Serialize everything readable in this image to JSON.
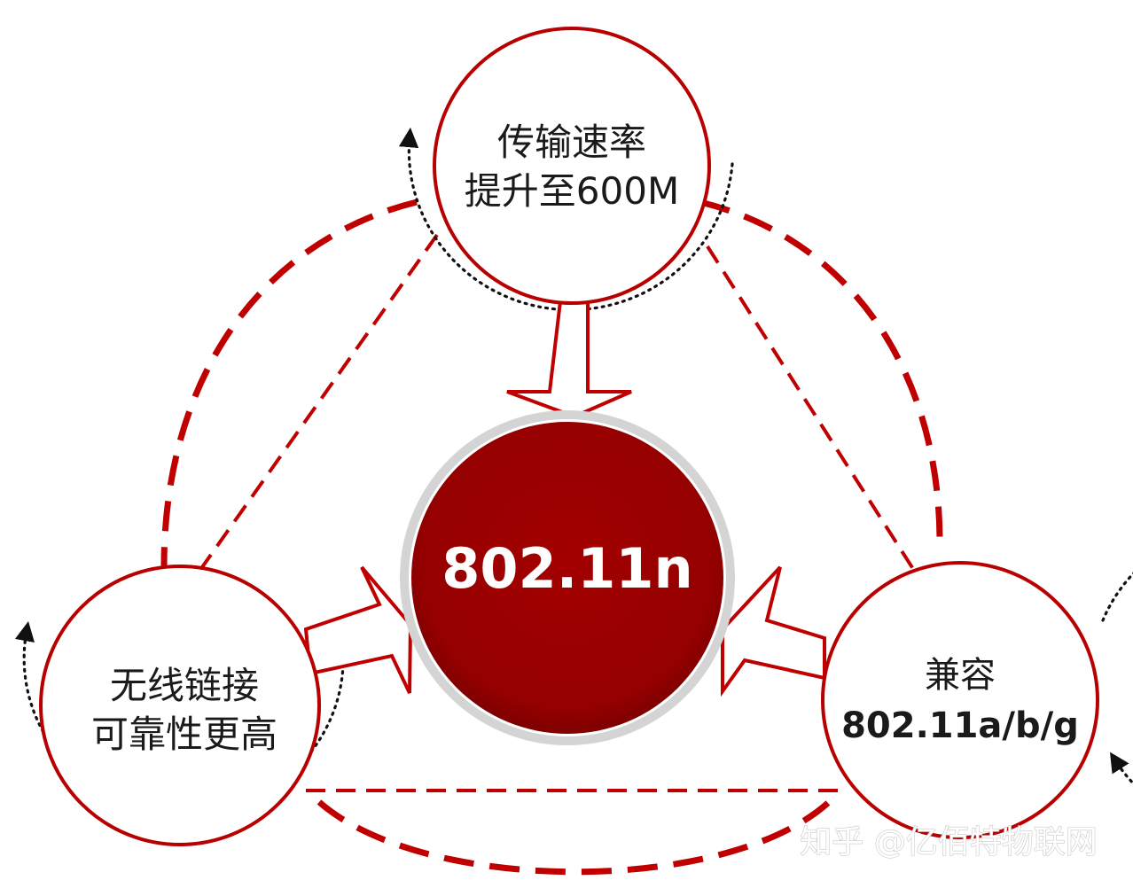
{
  "center": {
    "label": "802.11n"
  },
  "nodes": {
    "top": {
      "line1": "传输速率",
      "line2": "提升至600M"
    },
    "left": {
      "line1": "无线链接",
      "line2": "可靠性更高"
    },
    "right": {
      "line1": "兼容",
      "line2": "802.11a/b/g"
    }
  },
  "watermark": "知乎 @亿佰特物联网",
  "colors": {
    "accent": "#c00000",
    "center_fill": "#9b0000",
    "dotted": "#111111"
  }
}
